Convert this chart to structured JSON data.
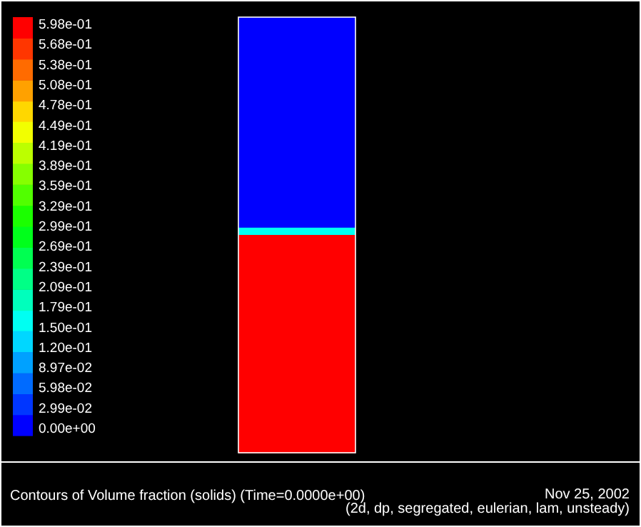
{
  "chart_data": {
    "type": "heatmap",
    "title": "Contours of Volume fraction (solids)  (Time=0.0000e+00)",
    "annotations": [
      "Nov 25, 2002",
      "(2d, dp, segregated, eulerian, lam, unsteady)"
    ],
    "categories": [
      null
    ],
    "y_categories": [
      null,
      null,
      null,
      null,
      null,
      null,
      null,
      null,
      null,
      null,
      null,
      null,
      null,
      null,
      null,
      null,
      null,
      null,
      null,
      null,
      null,
      null,
      null,
      null,
      null,
      null,
      null,
      null,
      null,
      null,
      null,
      null,
      null,
      null,
      null,
      null,
      null,
      null,
      null,
      null,
      null,
      null,
      null,
      null,
      null,
      null,
      null,
      null,
      null,
      null,
      null,
      null,
      null,
      null,
      null,
      null,
      null,
      null,
      null,
      null
    ],
    "cells": [
      [
        0
      ],
      [
        0
      ],
      [
        0
      ],
      [
        0
      ],
      [
        0
      ],
      [
        0
      ],
      [
        0
      ],
      [
        0
      ],
      [
        0
      ],
      [
        0
      ],
      [
        0
      ],
      [
        0
      ],
      [
        0
      ],
      [
        0
      ],
      [
        0
      ],
      [
        0
      ],
      [
        0
      ],
      [
        0
      ],
      [
        0
      ],
      [
        0
      ],
      [
        0
      ],
      [
        0
      ],
      [
        0
      ],
      [
        0
      ],
      [
        0
      ],
      [
        0
      ],
      [
        0
      ],
      [
        0
      ],
      [
        0
      ],
      [
        0.15
      ],
      [
        0.598
      ],
      [
        0.598
      ],
      [
        0.598
      ],
      [
        0.598
      ],
      [
        0.598
      ],
      [
        0.598
      ],
      [
        0.598
      ],
      [
        0.598
      ],
      [
        0.598
      ],
      [
        0.598
      ],
      [
        0.598
      ],
      [
        0.598
      ],
      [
        0.598
      ],
      [
        0.598
      ],
      [
        0.598
      ],
      [
        0.598
      ],
      [
        0.598
      ],
      [
        0.598
      ],
      [
        0.598
      ],
      [
        0.598
      ],
      [
        0.598
      ],
      [
        0.598
      ],
      [
        0.598
      ],
      [
        0.598
      ],
      [
        0.598
      ],
      [
        0.598
      ],
      [
        0.598
      ],
      [
        0.598
      ],
      [
        0.598
      ],
      [
        0.598
      ]
    ],
    "clim": [
      0,
      0.598
    ],
    "cticks": [
      {
        "value": 0,
        "label": "0.00e+00"
      },
      {
        "value": 0.0299,
        "label": "2.99e-02"
      },
      {
        "value": 0.0598,
        "label": "5.98e-02"
      },
      {
        "value": 0.0897,
        "label": "8.97e-02"
      },
      {
        "value": 0.12,
        "label": "1.20e-01"
      },
      {
        "value": 0.15,
        "label": "1.50e-01"
      },
      {
        "value": 0.179,
        "label": "1.79e-01"
      },
      {
        "value": 0.209,
        "label": "2.09e-01"
      },
      {
        "value": 0.239,
        "label": "2.39e-01"
      },
      {
        "value": 0.269,
        "label": "2.69e-01"
      },
      {
        "value": 0.299,
        "label": "2.99e-01"
      },
      {
        "value": 0.329,
        "label": "3.29e-01"
      },
      {
        "value": 0.359,
        "label": "3.59e-01"
      },
      {
        "value": 0.389,
        "label": "3.89e-01"
      },
      {
        "value": 0.419,
        "label": "4.19e-01"
      },
      {
        "value": 0.449,
        "label": "4.49e-01"
      },
      {
        "value": 0.478,
        "label": "4.78e-01"
      },
      {
        "value": 0.508,
        "label": "5.08e-01"
      },
      {
        "value": 0.538,
        "label": "5.38e-01"
      },
      {
        "value": 0.568,
        "label": "5.68e-01"
      },
      {
        "value": 0.598,
        "label": "5.98e-01"
      }
    ]
  }
}
